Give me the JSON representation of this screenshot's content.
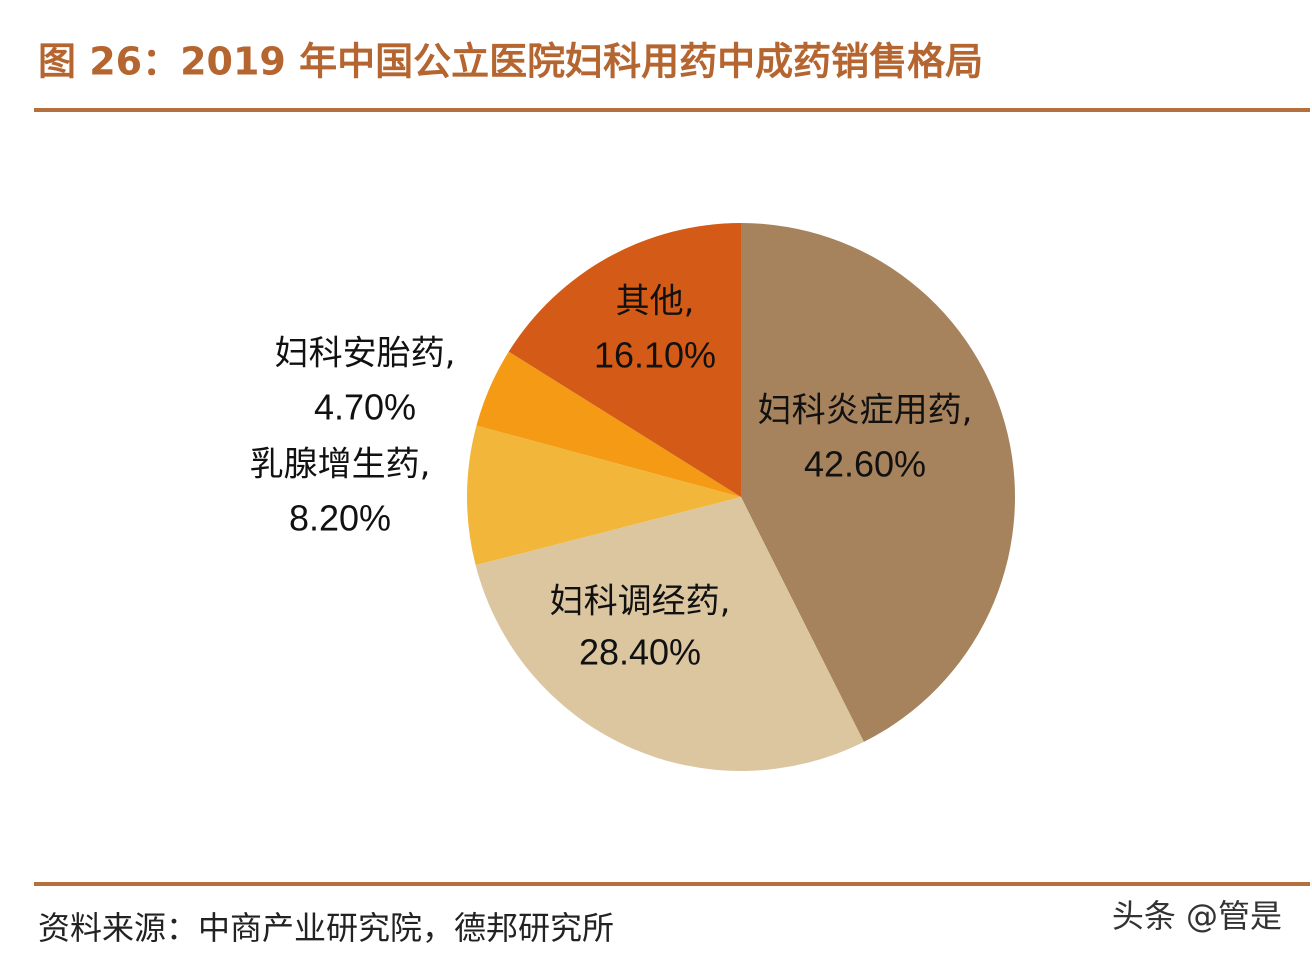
{
  "chart_data": {
    "type": "pie",
    "title": "图 26：2019 年中国公立医院妇科用药中成药销售格局",
    "categories": [
      "妇科炎症用药,",
      "妇科调经药,",
      "乳腺增生药,",
      "妇科安胎药,",
      "其他,"
    ],
    "values": [
      42.6,
      28.4,
      8.2,
      4.7,
      16.1
    ],
    "value_labels": [
      "42.60%",
      "28.40%",
      "8.20%",
      "4.70%",
      "16.10%"
    ],
    "colors": [
      "#a6835c",
      "#dcc6a0",
      "#f2b73a",
      "#f49a14",
      "#d45b17"
    ],
    "source": "资料来源：中商产业研究院，德邦研究所",
    "watermark": "头条 @管是"
  }
}
